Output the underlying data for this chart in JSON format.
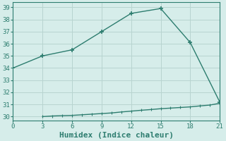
{
  "upper_x": [
    0,
    3,
    6,
    9,
    12,
    15,
    18,
    21
  ],
  "upper_y": [
    34.0,
    35.0,
    35.5,
    37.0,
    38.5,
    38.9,
    36.1,
    31.2
  ],
  "lower_x": [
    3,
    4,
    5,
    6,
    7,
    8,
    9,
    10,
    11,
    12,
    13,
    14,
    15,
    16,
    17,
    18,
    19,
    20,
    21
  ],
  "lower_y": [
    30.0,
    30.05,
    30.08,
    30.1,
    30.15,
    30.2,
    30.25,
    30.3,
    30.38,
    30.45,
    30.52,
    30.58,
    30.65,
    30.7,
    30.75,
    30.8,
    30.88,
    30.95,
    31.1
  ],
  "line_color": "#2d7d6f",
  "bg_color": "#d6edea",
  "grid_color": "#b8d4d0",
  "xlabel": "Humidex (Indice chaleur)",
  "xlabel_fontsize": 8,
  "xlim": [
    0,
    21
  ],
  "ylim": [
    29.7,
    39.4
  ],
  "xticks": [
    0,
    3,
    6,
    9,
    12,
    15,
    18,
    21
  ],
  "yticks": [
    30,
    31,
    32,
    33,
    34,
    35,
    36,
    37,
    38,
    39
  ],
  "marker": "+",
  "marker_size": 5,
  "linewidth": 1.0
}
